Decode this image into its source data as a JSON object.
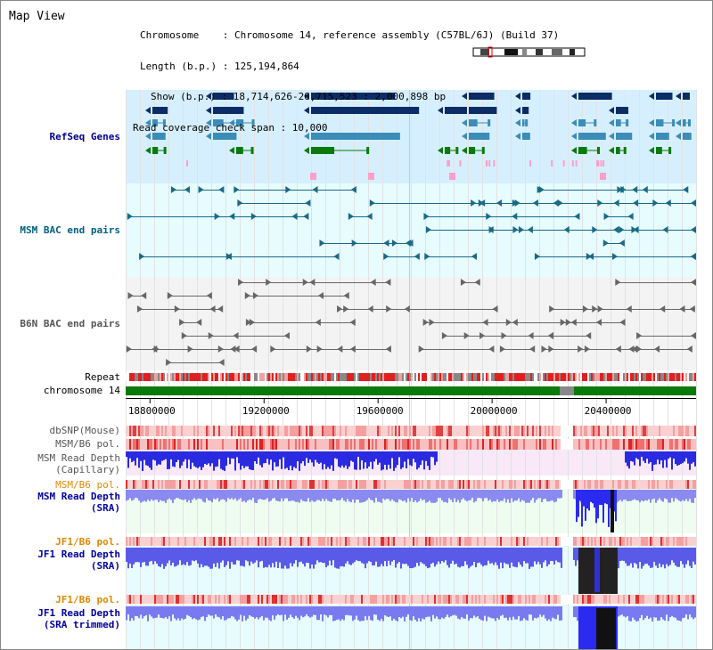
{
  "page_title": "Map View",
  "header": {
    "chromosome_line": "Chromosome    : Chromosome 14, reference assembly (C57BL/6J) (Build 37)",
    "length_line": "Length (b.p.) : 125,194,864",
    "show_line": "Show (b.p.) : 18,714,626-20,715,523 : 2,000,898 bp",
    "span_line": "Read coverage check span : 10,000"
  },
  "tracks": {
    "refseq": "RefSeq Genes",
    "msm_bac": "MSM BAC end pairs",
    "b6n_bac": "B6N BAC end pairs",
    "repeat": "Repeat",
    "chromosome": "chromosome 14",
    "dbsnp": "dbSNP(Mouse)",
    "msm_b6_pol_1": "MSM/B6 pol.",
    "msm_depth_cap_1": "MSM Read Depth",
    "msm_depth_cap_2": "(Capillary)",
    "msm_b6_pol_2": "MSM/B6 pol.",
    "msm_depth_sra_1": "MSM Read Depth",
    "msm_depth_sra_2": "(SRA)",
    "jf1_b6_pol_1": "JF1/B6 pol.",
    "jf1_depth_sra_1": "JF1 Read Depth",
    "jf1_depth_sra_2": "(SRA)",
    "jf1_b6_pol_2": "JF1/B6 pol.",
    "jf1_depth_trim_1": "JF1 Read Depth",
    "jf1_depth_trim_2": "(SRA trimmed)"
  },
  "axis": {
    "ticks": [
      "18800000",
      "19200000",
      "19600000",
      "20000000",
      "20400000"
    ],
    "tick_values": [
      18800000,
      19200000,
      19600000,
      20000000,
      20400000
    ],
    "range": [
      18714626,
      20715523
    ]
  },
  "colors": {
    "refseq_bg": "#d6efff",
    "msm_bac_bg": "#e6fcff",
    "b6n_bac_bg": "#f3f3f3",
    "capillary_bg": "#f8e8f8",
    "msm_sra_bg": "#eefdf0",
    "jf1_bg": "#e6fcff",
    "chrom_green": "#0a7a0a",
    "label_blue": "#00008b",
    "label_teal": "#006080",
    "label_gray": "#555555",
    "label_orange": "#e08800",
    "label_red": "#a00000"
  }
}
